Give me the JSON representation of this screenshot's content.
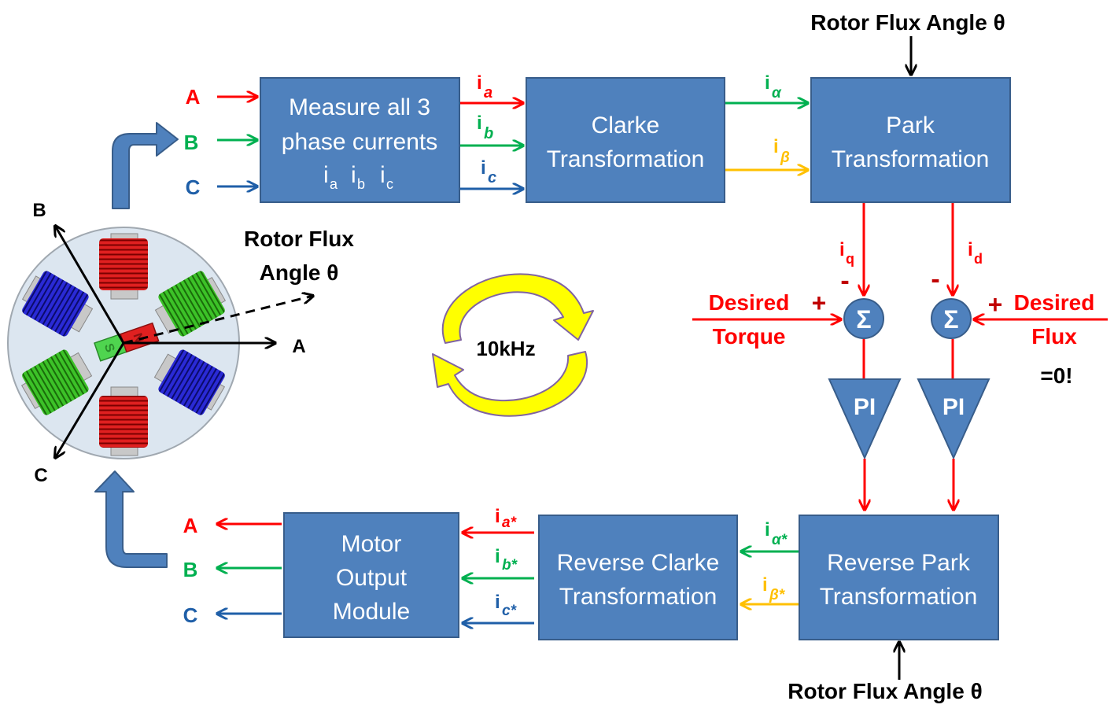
{
  "phases": {
    "a": "A",
    "b": "B",
    "c": "C"
  },
  "blocks": {
    "measure": {
      "line1": "Measure all 3",
      "line2": "phase currents",
      "i": "i",
      "s_a": "a",
      "s_b": "b",
      "s_c": "c"
    },
    "clarke": {
      "line1": "Clarke",
      "line2": "Transformation"
    },
    "park": {
      "line1": "Park",
      "line2": "Transformation"
    },
    "rev_park": {
      "line1": "Reverse Park",
      "line2": "Transformation"
    },
    "rev_clarke": {
      "line1": "Reverse Clarke",
      "line2": "Transformation"
    },
    "motor_output": {
      "line1": "Motor",
      "line2": "Output",
      "line3": "Module"
    }
  },
  "signals": {
    "i": "i",
    "a": "a",
    "b": "b",
    "c": "c",
    "alpha": "α",
    "beta": "β",
    "q": "q",
    "d": "d",
    "a_star": "a*",
    "b_star": "b*",
    "c_star": "c*",
    "alpha_star": "α*",
    "beta_star": "β*"
  },
  "rotor_flux_angle": "Rotor Flux Angle θ",
  "rotor_flux_line1": "Rotor Flux",
  "rotor_flux_line2": "Angle θ",
  "loop_rate": "10kHz",
  "summers": {
    "sigma": "Σ",
    "minus": "-",
    "plus": "+"
  },
  "pi_label": "PI",
  "desired_torque": {
    "line1": "Desired",
    "line2": "Torque"
  },
  "desired_flux": {
    "line1": "Desired",
    "line2": "Flux",
    "value": "=0!"
  },
  "magnet": {
    "south": "S",
    "north": "N"
  },
  "colors": {
    "block": "#4f81bd",
    "block_border": "#385d8a",
    "red": "#ff0000",
    "green": "#00b050",
    "blue": "#1f5fa8",
    "amber": "#ffc000",
    "yellow": "#ffff00",
    "dark_red": "#c00000"
  }
}
